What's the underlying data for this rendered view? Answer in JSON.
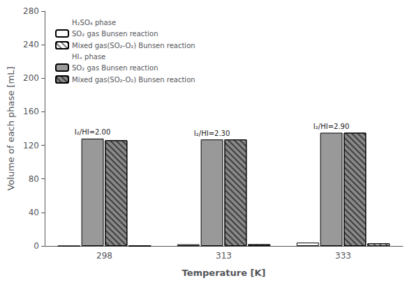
{
  "chart_data": {
    "type": "bar",
    "xlabel": "Temperature [K]",
    "ylabel": "Volume of each phase [mL]",
    "categories": [
      "298",
      "313",
      "333"
    ],
    "series": [
      {
        "name": "SO₂ gas Bunsen reaction",
        "group": "H₂SO₄ phase",
        "color": "#ffffff",
        "values": [
          0.0,
          2.0,
          4.0
        ]
      },
      {
        "name": "SO₂ gas Bunsen reaction",
        "group": "HIₓ phase",
        "color": "#999999",
        "values": [
          128.0,
          127.0,
          135.0
        ],
        "annotations": [
          "I₂/HI=2.00",
          "I₂/HI=2.30",
          "I₂/HI=2.90"
        ]
      },
      {
        "name": "Mixed gas(SO₂-O₂) Bunsen reaction",
        "group": "HIₓ phase",
        "color": "#888888",
        "marker": "hatch",
        "values": [
          126.0,
          127.0,
          135.0
        ]
      },
      {
        "name": "Mixed gas(SO₂-O₂) Bunsen reaction",
        "group": "H₂SO₄ phase",
        "color": "#ffffff",
        "marker": "hatch",
        "values": [
          0.0,
          2.0,
          3.0
        ]
      }
    ],
    "ylim": [
      0,
      280
    ],
    "yticks": [
      0,
      40,
      80,
      120,
      160,
      200,
      240,
      280
    ],
    "grid": false,
    "legend": "upper left"
  }
}
